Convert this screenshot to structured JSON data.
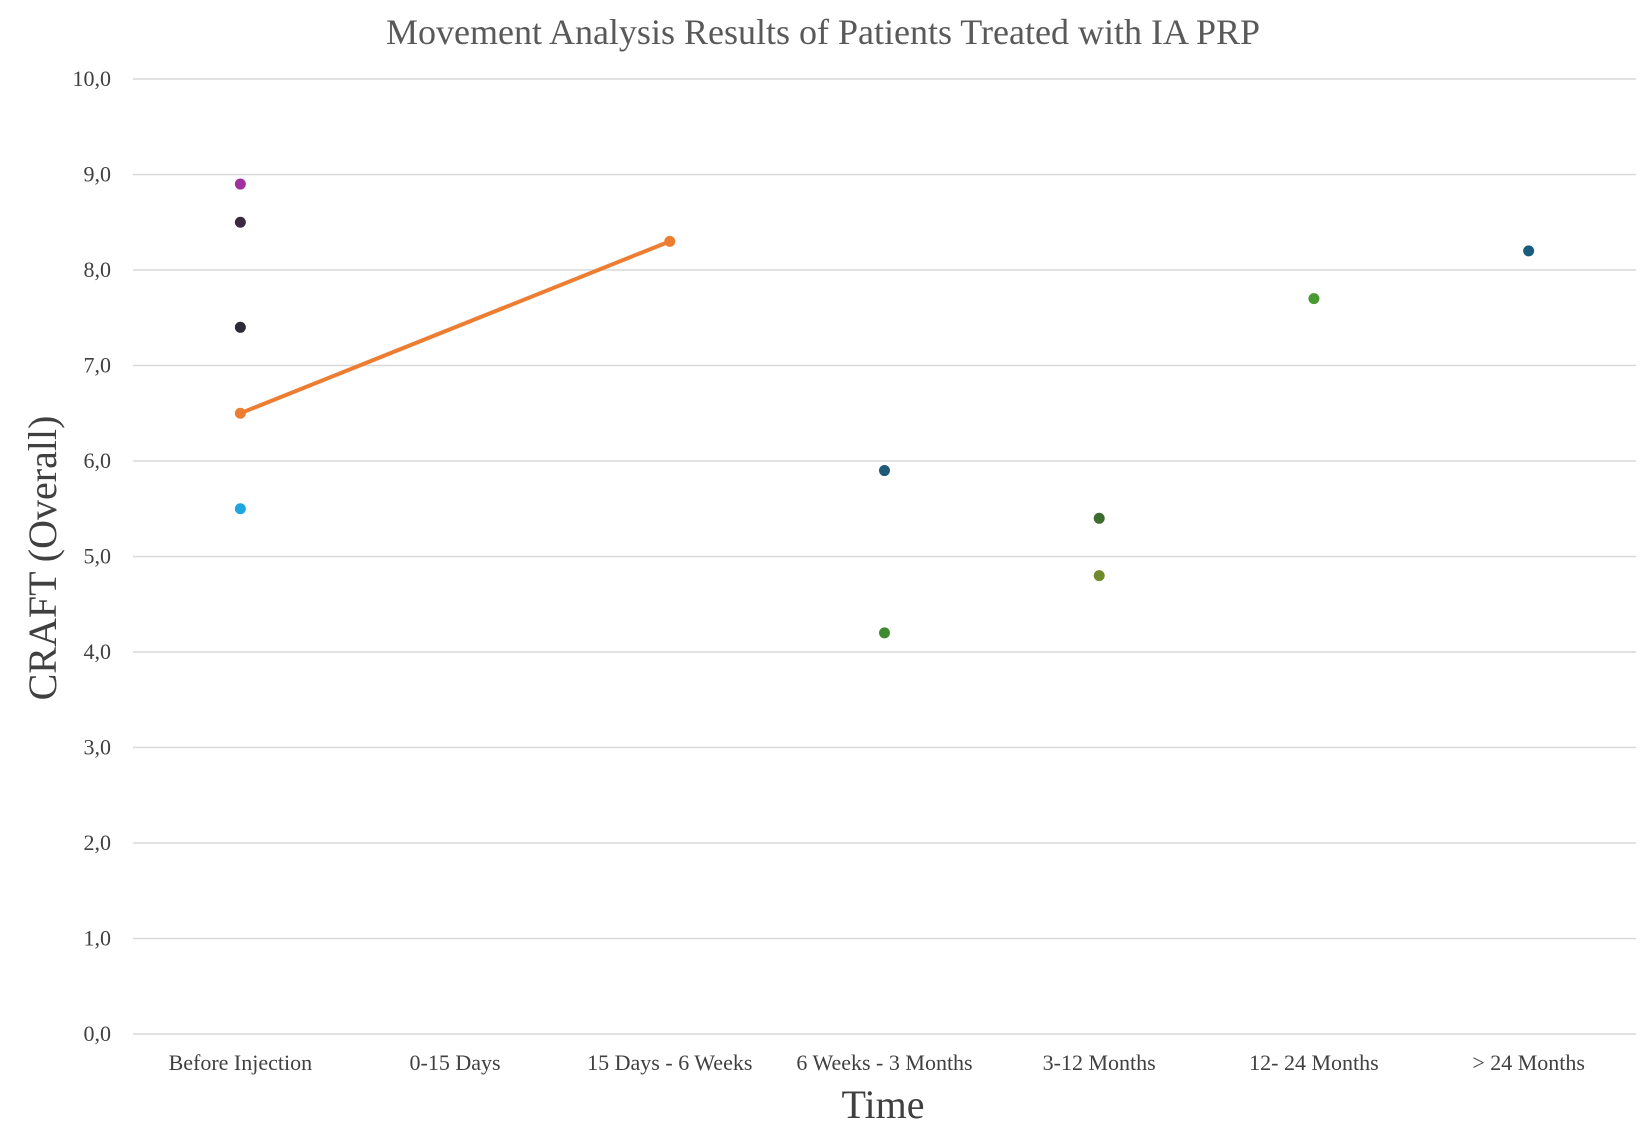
{
  "chart_data": {
    "type": "scatter",
    "title": "Movement Analysis Results of Patients Treated with IA PRP",
    "xlabel": "Time",
    "ylabel": "CRAFT (Overall)",
    "categories": [
      "Before Injection",
      "0-15 Days",
      "15 Days - 6 Weeks",
      "6 Weeks - 3 Months",
      "3-12 Months",
      "12- 24 Months",
      "> 24 Months"
    ],
    "ylim": [
      0,
      10
    ],
    "yticks": [
      "0,0",
      "1,0",
      "2,0",
      "3,0",
      "4,0",
      "5,0",
      "6,0",
      "7,0",
      "8,0",
      "9,0",
      "10,0"
    ],
    "grid": true,
    "series": [
      {
        "color": "#ED7D31",
        "mode": "line+markers",
        "points": [
          {
            "category": "Before Injection",
            "y": 6.5
          },
          {
            "category": "15 Days - 6 Weeks",
            "y": 8.3
          }
        ]
      },
      {
        "color": "#A0309F",
        "mode": "markers",
        "points": [
          {
            "category": "Before Injection",
            "y": 8.9
          }
        ]
      },
      {
        "color": "#3B2A3F",
        "mode": "markers",
        "points": [
          {
            "category": "Before Injection",
            "y": 8.5
          }
        ]
      },
      {
        "color": "#2E2A36",
        "mode": "markers",
        "points": [
          {
            "category": "Before Injection",
            "y": 7.4
          }
        ]
      },
      {
        "color": "#1FA5E0",
        "mode": "markers",
        "points": [
          {
            "category": "Before Injection",
            "y": 5.5
          }
        ]
      },
      {
        "color": "#1F5A78",
        "mode": "markers",
        "points": [
          {
            "category": "6 Weeks - 3 Months",
            "y": 5.9
          }
        ]
      },
      {
        "color": "#3E8A2E",
        "mode": "markers",
        "points": [
          {
            "category": "6 Weeks - 3 Months",
            "y": 4.2
          }
        ]
      },
      {
        "color": "#3E6B2E",
        "mode": "markers",
        "points": [
          {
            "category": "3-12 Months",
            "y": 5.4
          }
        ]
      },
      {
        "color": "#6E8A2A",
        "mode": "markers",
        "points": [
          {
            "category": "3-12 Months",
            "y": 4.8
          }
        ]
      },
      {
        "color": "#4A9A34",
        "mode": "markers",
        "points": [
          {
            "category": "12- 24 Months",
            "y": 7.7
          }
        ]
      },
      {
        "color": "#1A5C7E",
        "mode": "markers",
        "points": [
          {
            "category": "> 24 Months",
            "y": 8.2
          }
        ]
      }
    ]
  }
}
